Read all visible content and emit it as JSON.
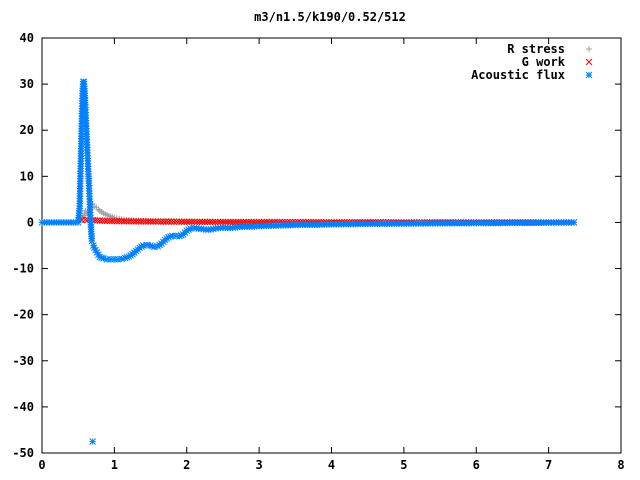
{
  "chart_data": {
    "type": "scatter",
    "title": "m3/n1.5/k190/0.52/512",
    "xlabel": "",
    "ylabel": "",
    "xlim": [
      0,
      8
    ],
    "ylim": [
      -50,
      40
    ],
    "xticks": [
      "0",
      "1",
      "2",
      "3",
      "4",
      "5",
      "6",
      "7",
      "8"
    ],
    "yticks": [
      "40",
      "30",
      "20",
      "10",
      "0",
      "-10",
      "-20",
      "-30",
      "-40",
      "-50"
    ],
    "grid": false,
    "legend_position": "top-right",
    "series": [
      {
        "name": "R stress",
        "marker": "plus",
        "color": "#a0a0a0",
        "points": [
          [
            0.55,
            0.8
          ],
          [
            0.58,
            1.5
          ],
          [
            0.6,
            2.5
          ],
          [
            0.62,
            2.0
          ],
          [
            0.64,
            1.8
          ],
          [
            0.66,
            3.0
          ],
          [
            0.68,
            3.5
          ],
          [
            0.7,
            4.0
          ],
          [
            0.72,
            3.5
          ],
          [
            0.75,
            3.2
          ],
          [
            0.78,
            2.8
          ],
          [
            0.8,
            2.5
          ],
          [
            0.85,
            2.0
          ],
          [
            0.9,
            1.6
          ],
          [
            0.95,
            1.3
          ],
          [
            1.0,
            1.0
          ],
          [
            1.1,
            0.7
          ],
          [
            1.2,
            0.5
          ],
          [
            1.3,
            0.4
          ],
          [
            1.5,
            0.3
          ],
          [
            1.7,
            0.2
          ],
          [
            2.0,
            0.15
          ],
          [
            2.5,
            0.1
          ],
          [
            3.0,
            0.05
          ],
          [
            4.0,
            0.02
          ],
          [
            5.0,
            0.01
          ],
          [
            6.0,
            0.0
          ],
          [
            7.0,
            0.0
          ],
          [
            7.35,
            0.0
          ]
        ]
      },
      {
        "name": "G work",
        "marker": "cross",
        "color": "#ff0000",
        "points": [
          [
            0.55,
            0.5
          ],
          [
            0.6,
            0.6
          ],
          [
            0.7,
            0.5
          ],
          [
            0.8,
            0.4
          ],
          [
            0.9,
            0.35
          ],
          [
            1.0,
            0.3
          ],
          [
            1.2,
            0.25
          ],
          [
            1.5,
            0.2
          ],
          [
            2.0,
            0.15
          ],
          [
            2.5,
            0.1
          ],
          [
            3.0,
            0.1
          ],
          [
            3.5,
            0.08
          ],
          [
            4.0,
            0.05
          ],
          [
            4.5,
            0.05
          ],
          [
            5.0,
            0.03
          ],
          [
            5.5,
            0.02
          ],
          [
            6.0,
            0.02
          ],
          [
            6.5,
            0.01
          ],
          [
            7.0,
            0.0
          ],
          [
            7.35,
            0.0
          ]
        ]
      },
      {
        "name": "Acoustic flux",
        "marker": "star",
        "color": "#0080ff",
        "points": [
          [
            0.0,
            0.0
          ],
          [
            0.2,
            0.0
          ],
          [
            0.4,
            0.0
          ],
          [
            0.5,
            0.0
          ],
          [
            0.52,
            3.0
          ],
          [
            0.55,
            22.5
          ],
          [
            0.56,
            28.0
          ],
          [
            0.57,
            30.5
          ],
          [
            0.58,
            30.5
          ],
          [
            0.59,
            28.0
          ],
          [
            0.6,
            25.0
          ],
          [
            0.61,
            21.5
          ],
          [
            0.62,
            18.0
          ],
          [
            0.63,
            14.5
          ],
          [
            0.64,
            11.0
          ],
          [
            0.65,
            8.0
          ],
          [
            0.66,
            4.5
          ],
          [
            0.67,
            1.0
          ],
          [
            0.68,
            -2.0
          ],
          [
            0.69,
            -4.0
          ],
          [
            0.7,
            -47.5
          ],
          [
            0.71,
            -5.0
          ],
          [
            0.72,
            -5.5
          ],
          [
            0.74,
            -6.0
          ],
          [
            0.76,
            -6.5
          ],
          [
            0.78,
            -7.0
          ],
          [
            0.8,
            -7.5
          ],
          [
            0.85,
            -7.8
          ],
          [
            0.9,
            -8.0
          ],
          [
            0.95,
            -8.0
          ],
          [
            1.0,
            -8.0
          ],
          [
            1.05,
            -8.0
          ],
          [
            1.1,
            -7.9
          ],
          [
            1.15,
            -7.7
          ],
          [
            1.2,
            -7.4
          ],
          [
            1.25,
            -6.9
          ],
          [
            1.3,
            -6.2
          ],
          [
            1.35,
            -5.5
          ],
          [
            1.4,
            -5.0
          ],
          [
            1.45,
            -4.9
          ],
          [
            1.5,
            -5.0
          ],
          [
            1.55,
            -5.3
          ],
          [
            1.6,
            -5.2
          ],
          [
            1.65,
            -4.6
          ],
          [
            1.7,
            -3.8
          ],
          [
            1.75,
            -3.2
          ],
          [
            1.8,
            -2.9
          ],
          [
            1.85,
            -2.9
          ],
          [
            1.9,
            -3.0
          ],
          [
            1.95,
            -2.6
          ],
          [
            2.0,
            -1.8
          ],
          [
            2.05,
            -1.3
          ],
          [
            2.1,
            -1.2
          ],
          [
            2.2,
            -1.4
          ],
          [
            2.3,
            -1.6
          ],
          [
            2.4,
            -1.3
          ],
          [
            2.5,
            -1.1
          ],
          [
            2.6,
            -1.2
          ],
          [
            2.7,
            -1.0
          ],
          [
            2.8,
            -0.9
          ],
          [
            2.9,
            -0.9
          ],
          [
            3.0,
            -0.8
          ],
          [
            3.2,
            -0.7
          ],
          [
            3.4,
            -0.6
          ],
          [
            3.6,
            -0.5
          ],
          [
            3.8,
            -0.5
          ],
          [
            4.0,
            -0.4
          ],
          [
            4.3,
            -0.35
          ],
          [
            4.6,
            -0.3
          ],
          [
            5.0,
            -0.25
          ],
          [
            5.4,
            -0.2
          ],
          [
            5.8,
            -0.15
          ],
          [
            6.2,
            -0.12
          ],
          [
            6.6,
            -0.1
          ],
          [
            7.0,
            -0.05
          ],
          [
            7.35,
            0.0
          ]
        ]
      }
    ]
  }
}
